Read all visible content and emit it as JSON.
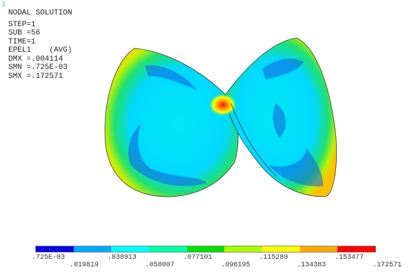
{
  "window_number": "1",
  "info": {
    "title": "NODAL SOLUTION",
    "lines": [
      "STEP=1",
      "SUB =56",
      "TIME=1",
      "EPEL1    (AVG)",
      "DMX =.004114",
      "SMN =.725E-03",
      "SMX =.172571"
    ]
  },
  "legend": {
    "colors": [
      "#0000e0",
      "#00aaff",
      "#00ffff",
      "#00ffaa",
      "#00e000",
      "#aaff00",
      "#ffff00",
      "#ffaa00",
      "#ff0000"
    ],
    "labels": [
      ".725E-03",
      ".019819",
      ".038913",
      ".058007",
      ".077101",
      ".096195",
      ".115289",
      ".134383",
      ".153477",
      ".172571"
    ]
  }
}
